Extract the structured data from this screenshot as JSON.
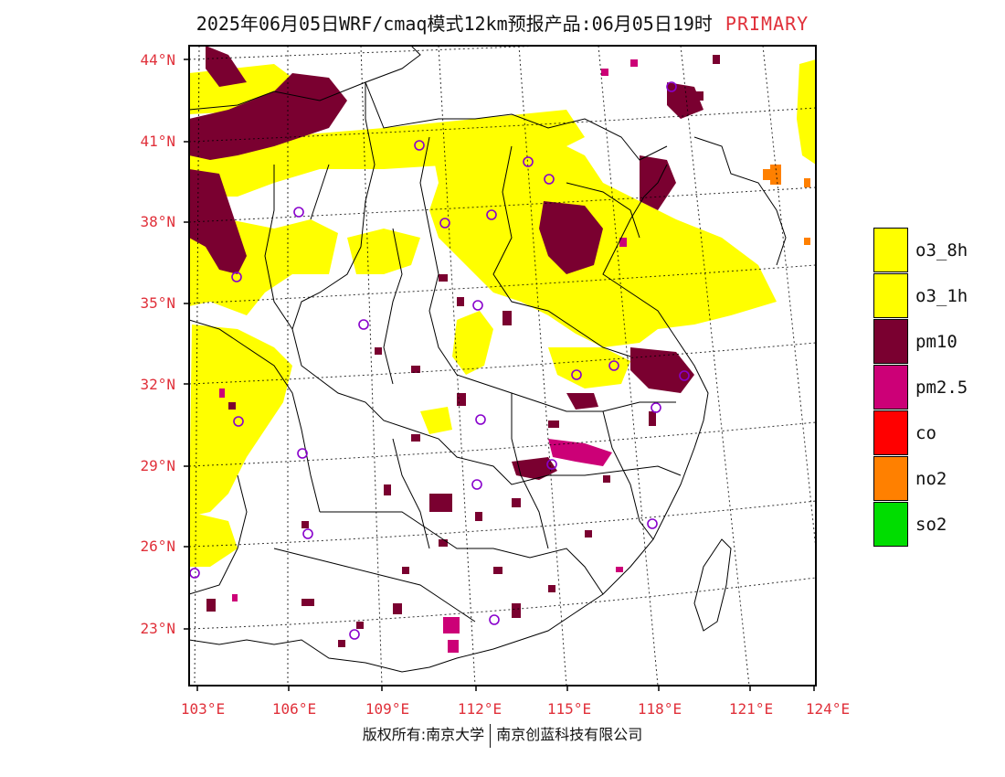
{
  "title": {
    "main": "2025年06月05日WRF/cmaq模式12km预报产品:06月05日19时",
    "tag": "PRIMARY"
  },
  "map": {
    "lat_labels": [
      "44°N",
      "41°N",
      "38°N",
      "35°N",
      "32°N",
      "29°N",
      "26°N",
      "23°N"
    ],
    "lon_labels": [
      "103°E",
      "106°E",
      "109°E",
      "112°E",
      "115°E",
      "118°E",
      "121°E",
      "124°E"
    ],
    "region": "China east/central, Primary pollutant forecast",
    "colors": {
      "o3": "#ffff00",
      "pm10": "#7a0030",
      "pm25": "#cc0077",
      "co": "#ff0000",
      "no2": "#ff8000",
      "so2": "#00dd00",
      "station": "#8800cc",
      "axis_label": "#e0303a"
    }
  },
  "legend": {
    "items": [
      {
        "label": "o3_8h",
        "color": "#ffff00"
      },
      {
        "label": "o3_1h",
        "color": "#ffff00"
      },
      {
        "label": "pm10",
        "color": "#7a0030"
      },
      {
        "label": "pm2.5",
        "color": "#cc0077"
      },
      {
        "label": "co",
        "color": "#ff0000"
      },
      {
        "label": "no2",
        "color": "#ff8000"
      },
      {
        "label": "so2",
        "color": "#00dd00"
      }
    ]
  },
  "footer": {
    "left": "版权所有:南京大学",
    "right": "南京创蓝科技有限公司"
  }
}
